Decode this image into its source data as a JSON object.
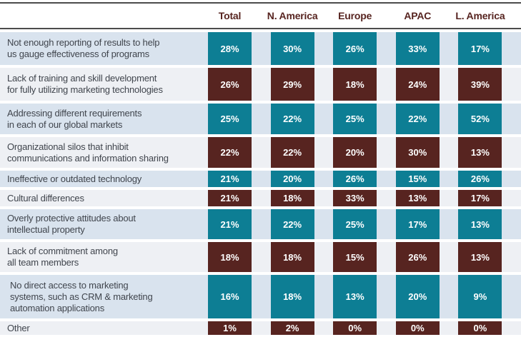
{
  "header": {
    "columns": [
      "Total",
      "N. America",
      "Europe",
      "APAC",
      "L. America"
    ]
  },
  "chart_data": {
    "type": "table",
    "columns": [
      "Total",
      "N. America",
      "Europe",
      "APAC",
      "L. America"
    ],
    "rows": [
      {
        "label": "Not enough reporting of results to help us gauge effectiveness of programs",
        "label_lines": [
          "Not enough reporting of results to help",
          "us gauge effectiveness of programs"
        ],
        "values": [
          28,
          30,
          26,
          33,
          17
        ],
        "values_pct": [
          "28%",
          "30%",
          "26%",
          "33%",
          "17%"
        ],
        "box_color": "teal"
      },
      {
        "label": "Lack of training and skill development for fully utilizing marketing technologies",
        "label_lines": [
          "Lack of training and skill development",
          "for fully utilizing marketing technologies"
        ],
        "values": [
          26,
          29,
          18,
          24,
          39
        ],
        "values_pct": [
          "26%",
          "29%",
          "18%",
          "24%",
          "39%"
        ],
        "box_color": "maroon"
      },
      {
        "label": "Addressing different requirements in each of our global markets",
        "label_lines": [
          "Addressing different requirements",
          "in each of our global markets"
        ],
        "values": [
          25,
          22,
          25,
          22,
          52
        ],
        "values_pct": [
          "25%",
          "22%",
          "25%",
          "22%",
          "52%"
        ],
        "box_color": "teal"
      },
      {
        "label": "Organizational silos that inhibit communications and information sharing",
        "label_lines": [
          "Organizational silos that inhibit",
          "communications and information sharing"
        ],
        "values": [
          22,
          22,
          20,
          30,
          13
        ],
        "values_pct": [
          "22%",
          "22%",
          "20%",
          "30%",
          "13%"
        ],
        "box_color": "maroon"
      },
      {
        "label": "Ineffective or outdated technology",
        "label_lines": [
          "Ineffective or outdated technology"
        ],
        "values": [
          21,
          20,
          26,
          15,
          26
        ],
        "values_pct": [
          "21%",
          "20%",
          "26%",
          "15%",
          "26%"
        ],
        "box_color": "teal"
      },
      {
        "label": "Cultural differences",
        "label_lines": [
          "Cultural differences"
        ],
        "values": [
          21,
          18,
          33,
          13,
          17
        ],
        "values_pct": [
          "21%",
          "18%",
          "33%",
          "13%",
          "17%"
        ],
        "box_color": "maroon"
      },
      {
        "label": "Overly protective attitudes about intellectual property",
        "label_lines": [
          "Overly protective attitudes about",
          "intellectual property"
        ],
        "values": [
          21,
          22,
          25,
          17,
          13
        ],
        "values_pct": [
          "21%",
          "22%",
          "25%",
          "17%",
          "13%"
        ],
        "box_color": "teal"
      },
      {
        "label": "Lack of commitment among all team members",
        "label_lines": [
          "Lack of commitment among",
          "all team members"
        ],
        "values": [
          18,
          18,
          15,
          26,
          13
        ],
        "values_pct": [
          "18%",
          "18%",
          "15%",
          "26%",
          "13%"
        ],
        "box_color": "maroon"
      },
      {
        "label": "No direct access to marketing systems, such as CRM & marketing automation applications",
        "label_lines": [
          "No direct access to marketing",
          "systems, such as CRM & marketing",
          "automation applications"
        ],
        "values": [
          16,
          18,
          13,
          20,
          9
        ],
        "values_pct": [
          "16%",
          "18%",
          "13%",
          "20%",
          "9%"
        ],
        "box_color": "teal"
      },
      {
        "label": "Other",
        "label_lines": [
          "Other"
        ],
        "values": [
          1,
          2,
          0,
          0,
          0
        ],
        "values_pct": [
          "1%",
          "2%",
          "0%",
          "0%",
          "0%"
        ],
        "box_color": "maroon"
      }
    ]
  },
  "colors": {
    "teal": "#0d7e94",
    "maroon": "#572420",
    "row_bg_teal": "#d9e3ee",
    "row_bg_maroon": "#eef0f4",
    "rule_gray": "#4c4c4c",
    "header_text": "#572420",
    "label_text": "#40454d",
    "value_text": "#ffffff",
    "bottom_rule": "#572420"
  }
}
